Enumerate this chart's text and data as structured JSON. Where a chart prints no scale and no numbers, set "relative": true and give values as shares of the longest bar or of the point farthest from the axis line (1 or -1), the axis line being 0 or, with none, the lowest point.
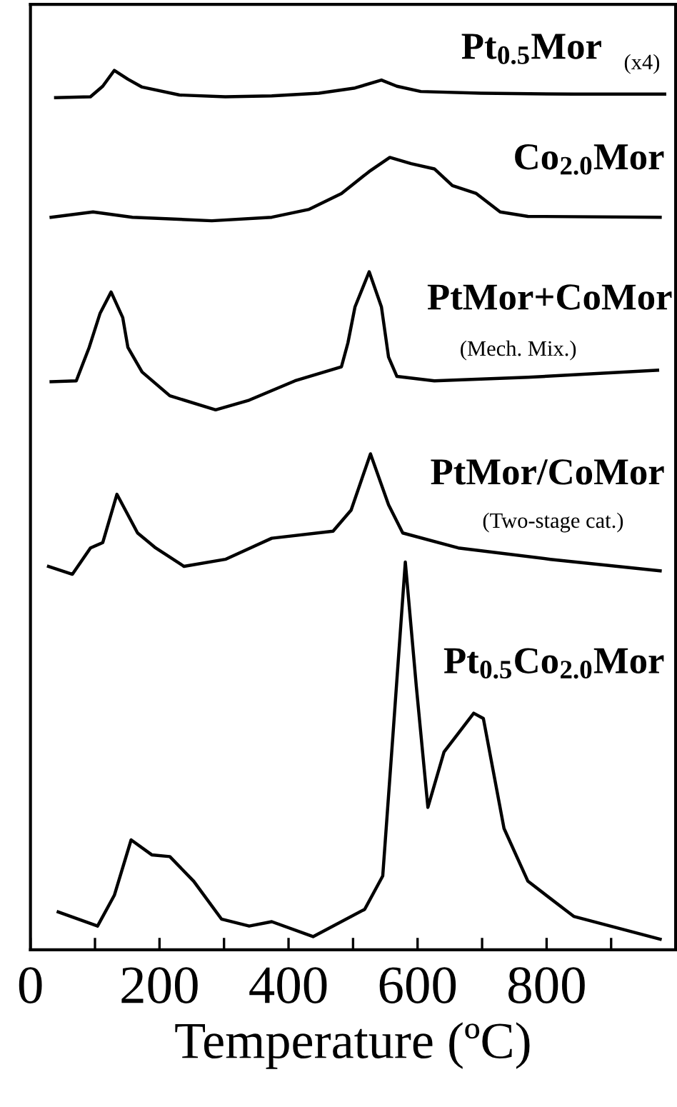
{
  "chart_data": {
    "type": "line",
    "relative": true,
    "xlabel": "Temperature (ºC)",
    "tick_labels": "x",
    "legend": false,
    "grid": false,
    "xlim": [
      0,
      1000
    ],
    "xticks": [
      0,
      {
        "value": 100,
        "label": null
      },
      200,
      {
        "value": 300,
        "label": null
      },
      400,
      {
        "value": 500,
        "label": null
      },
      600,
      {
        "value": 700,
        "label": null
      },
      800,
      {
        "value": 900,
        "label": null
      }
    ],
    "series": [
      {
        "name": "Pt$_{0.5}$Mor",
        "color": "#000000",
        "x": [
          39,
          93,
          112,
          130,
          151,
          173,
          231,
          302,
          374,
          447,
          503,
          544,
          568,
          605,
          698,
          842,
          983
        ],
        "values": [
          0.969,
          0.97,
          0.982,
          1.0,
          0.99,
          0.981,
          0.972,
          0.97,
          0.971,
          0.974,
          0.98,
          0.989,
          0.982,
          0.976,
          0.974,
          0.973,
          0.973
        ]
      },
      {
        "name": "Co$_{2.0}$Mor",
        "color": "#000000",
        "x": [
          32,
          97,
          158,
          281,
          374,
          432,
          482,
          525,
          557,
          590,
          626,
          654,
          691,
          728,
          771,
          976
        ],
        "values": [
          0.833,
          0.839,
          0.833,
          0.829,
          0.833,
          0.842,
          0.86,
          0.885,
          0.901,
          0.894,
          0.888,
          0.869,
          0.86,
          0.839,
          0.834,
          0.833
        ]
      },
      {
        "name": "PtMor+CoMor",
        "color": "#000000",
        "x": [
          32,
          71,
          91,
          108,
          125,
          143,
          151,
          173,
          216,
          287,
          339,
          410,
          482,
          492,
          503,
          525,
          544,
          555,
          568,
          626,
          771,
          972
        ],
        "values": [
          0.646,
          0.647,
          0.685,
          0.724,
          0.748,
          0.719,
          0.685,
          0.657,
          0.63,
          0.614,
          0.625,
          0.647,
          0.663,
          0.69,
          0.731,
          0.771,
          0.731,
          0.674,
          0.652,
          0.647,
          0.651,
          0.659
        ]
      },
      {
        "name": "PtMor/CoMor",
        "color": "#000000",
        "x": [
          28,
          65,
          93,
          112,
          134,
          166,
          194,
          238,
          302,
          374,
          469,
          497,
          527,
          555,
          577,
          663,
          806,
          976
        ],
        "values": [
          0.436,
          0.427,
          0.457,
          0.463,
          0.518,
          0.474,
          0.457,
          0.436,
          0.444,
          0.468,
          0.476,
          0.5,
          0.564,
          0.506,
          0.474,
          0.457,
          0.444,
          0.431
        ]
      },
      {
        "name": "Pt$_{0.5}$Co$_{2.0}$Mor",
        "color": "#000000",
        "x": [
          43,
          104,
          130,
          156,
          188,
          216,
          253,
          296,
          339,
          374,
          438,
          518,
          546,
          562,
          581,
          598,
          616,
          641,
          687,
          702,
          734,
          771,
          842,
          976
        ],
        "values": [
          0.043,
          0.027,
          0.062,
          0.125,
          0.108,
          0.106,
          0.078,
          0.035,
          0.027,
          0.032,
          0.015,
          0.046,
          0.084,
          0.246,
          0.441,
          0.3,
          0.162,
          0.225,
          0.269,
          0.263,
          0.138,
          0.078,
          0.038,
          0.012
        ]
      }
    ],
    "annotations": [
      "(x4)",
      "(Mech. Mix.)",
      "(Two-stage cat.)"
    ]
  }
}
